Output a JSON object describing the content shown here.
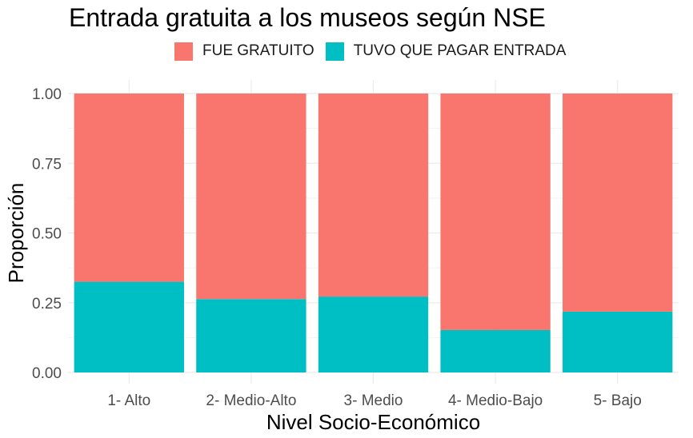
{
  "chart_data": {
    "type": "bar",
    "stacked": true,
    "title": "Entrada gratuita a los museos según NSE",
    "xlabel": "Nivel Socio-Económico",
    "ylabel": "Proporción",
    "ylim": [
      0,
      1
    ],
    "yticks": [
      "0.00",
      "0.25",
      "0.50",
      "0.75",
      "1.00"
    ],
    "categories": [
      "1- Alto",
      "2- Medio-Alto",
      "3- Medio",
      "4- Medio-Bajo",
      "5- Bajo"
    ],
    "series": [
      {
        "name": "FUE GRATUITO",
        "color": "#F8766D",
        "values": [
          0.675,
          0.737,
          0.728,
          0.848,
          0.782
        ]
      },
      {
        "name": "TUVO QUE PAGAR ENTRADA",
        "color": "#00BFC4",
        "values": [
          0.325,
          0.263,
          0.272,
          0.152,
          0.218
        ]
      }
    ],
    "stack_order_bottom_to_top": [
      "TUVO QUE PAGAR ENTRADA",
      "FUE GRATUITO"
    ],
    "legend_position": "top",
    "grid": true
  }
}
